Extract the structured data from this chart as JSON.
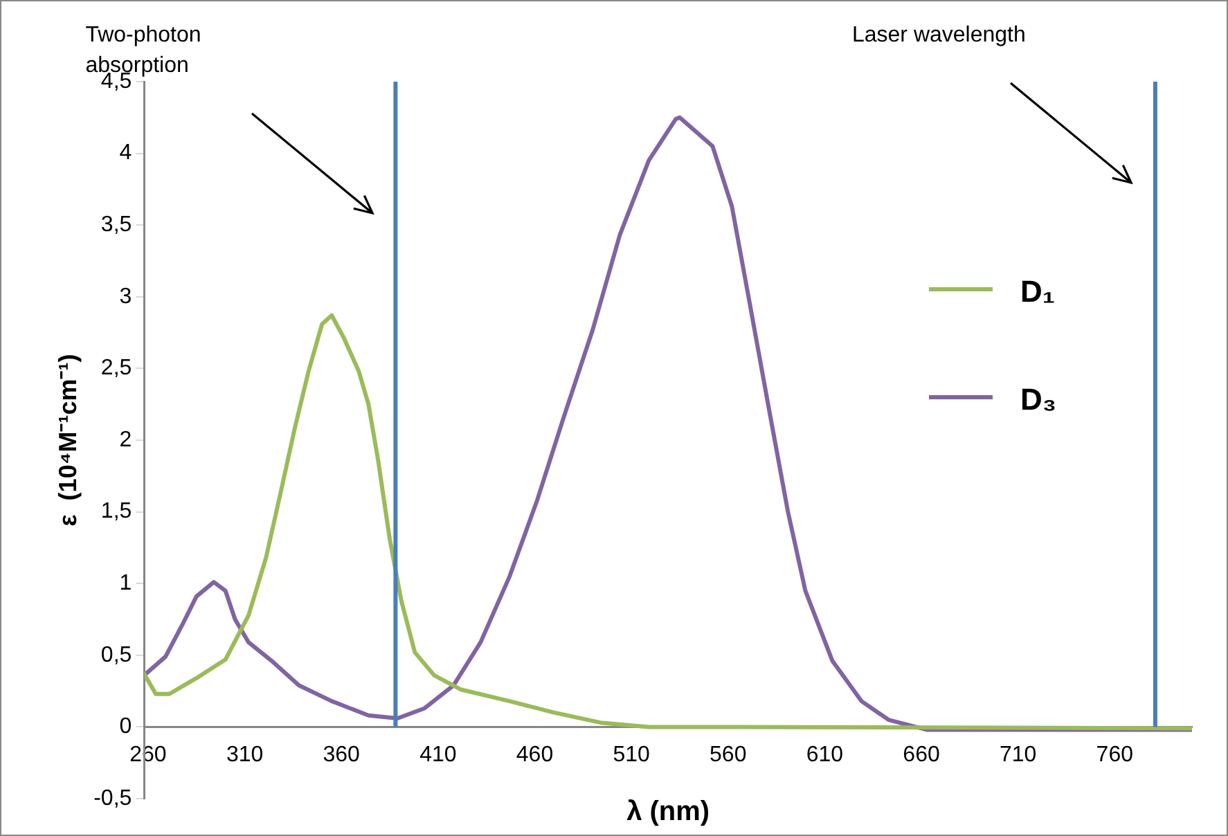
{
  "chart_data": {
    "type": "line",
    "xlabel": "λ (nm)",
    "ylabel": "ε  (10⁴M⁻¹cm⁻¹)",
    "xlim": [
      258,
      800
    ],
    "xticks": [
      260,
      310,
      360,
      410,
      460,
      510,
      560,
      610,
      660,
      710,
      760
    ],
    "ylim": [
      -0.5,
      4.5
    ],
    "yticks": [
      {
        "value": -0.5,
        "label": "-0,5"
      },
      0,
      {
        "value": 0.5,
        "label": "0,5"
      },
      1,
      {
        "value": 1.5,
        "label": "1,5"
      },
      2,
      {
        "value": 2.5,
        "label": "2,5"
      },
      3,
      {
        "value": 3.5,
        "label": "3,5"
      },
      4,
      {
        "value": 4.5,
        "label": "4,5"
      }
    ],
    "grid": false,
    "legend": "right",
    "marker": "none",
    "line_style": "solid",
    "series": [
      {
        "name": "D₁",
        "color": "#9bbb59",
        "x": [
          258,
          264,
          271,
          285,
          300,
          312,
          321,
          328,
          336,
          343,
          350,
          355,
          361,
          369,
          374,
          379,
          385,
          391,
          398,
          408,
          422,
          447,
          470,
          494,
          519,
          560,
          800
        ],
        "values": [
          0.37,
          0.23,
          0.23,
          0.34,
          0.47,
          0.78,
          1.18,
          1.6,
          2.09,
          2.48,
          2.81,
          2.87,
          2.72,
          2.48,
          2.25,
          1.86,
          1.31,
          0.88,
          0.52,
          0.36,
          0.26,
          0.18,
          0.1,
          0.03,
          0,
          0,
          -0.01
        ]
      },
      {
        "name": "D₃",
        "color": "#8064a2",
        "x": [
          258,
          269,
          278,
          285,
          294,
          300,
          305,
          312,
          324,
          338,
          355,
          374,
          389,
          403,
          418,
          432,
          447,
          461,
          475,
          490,
          504,
          519,
          533,
          535,
          552,
          562,
          571,
          581,
          591,
          600,
          614,
          629,
          643,
          663,
          800
        ],
        "values": [
          0.36,
          0.49,
          0.72,
          0.91,
          1.01,
          0.95,
          0.75,
          0.59,
          0.46,
          0.29,
          0.18,
          0.08,
          0.06,
          0.13,
          0.29,
          0.59,
          1.05,
          1.57,
          2.16,
          2.77,
          3.43,
          3.95,
          4.24,
          4.25,
          4.05,
          3.63,
          2.97,
          2.23,
          1.5,
          0.95,
          0.46,
          0.18,
          0.05,
          -0.02,
          -0.02
        ]
      }
    ],
    "ref_lines": [
      {
        "axis": "x",
        "value": 388,
        "color": "#4a7ebb"
      },
      {
        "axis": "x",
        "value": 781,
        "color": "#4a7ebb"
      }
    ],
    "annotations": [
      "Two-photon absorption",
      "Laser wavelength"
    ]
  }
}
